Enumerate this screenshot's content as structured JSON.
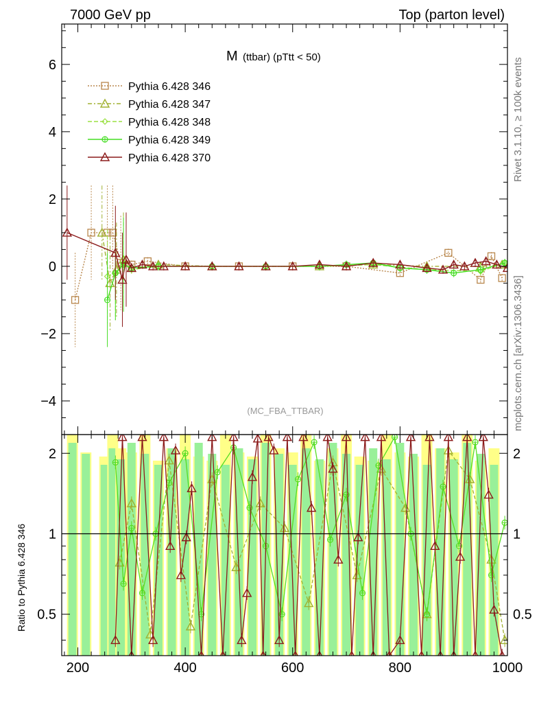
{
  "header": {
    "left": "7000 GeV pp",
    "right": "Top (parton level)"
  },
  "side_labels": {
    "top": "Rivet 3.1.10, ≥ 100k events",
    "bottom": "mcplots.cern.ch [arXiv:1306.3436]"
  },
  "chart_data": {
    "type": "line",
    "title": "M (ttbar) (pTtt < 50)",
    "title_main": "M",
    "title_sub": "(ttbar) (pTtt < 50)",
    "analysis": "(MC_FBA_TTBAR)",
    "xlim": [
      170,
      1000
    ],
    "ylim": [
      -5,
      7.2
    ],
    "xticks": [
      200,
      400,
      600,
      800,
      1000
    ],
    "yticks": [
      -4,
      -2,
      0,
      2,
      4,
      6
    ],
    "legend_position": "top-left",
    "series": [
      {
        "name": "Pythia 6.428 346",
        "color": "#b8864b",
        "marker": "square",
        "dash": "2,2",
        "x": [
          195,
          225,
          255,
          265,
          280,
          300,
          330,
          400,
          500,
          600,
          700,
          800,
          890,
          950,
          970,
          990
        ],
        "y": [
          -1.0,
          1.0,
          1.0,
          1.0,
          0.1,
          0.05,
          0.15,
          0.0,
          0.0,
          0.0,
          0.0,
          -0.2,
          0.4,
          -0.4,
          0.3,
          -0.35
        ]
      },
      {
        "name": "Pythia 6.428 347",
        "color": "#a0b030",
        "marker": "triangle",
        "dash": "6,3,2,3",
        "x": [
          245,
          260,
          272,
          285,
          300,
          350,
          450,
          550,
          650,
          750,
          850,
          950,
          990
        ],
        "y": [
          1.0,
          -0.5,
          -0.1,
          0.2,
          -0.05,
          0.05,
          0.0,
          0.0,
          0.0,
          0.05,
          0.0,
          0.0,
          0.05
        ]
      },
      {
        "name": "Pythia 6.428 348",
        "color": "#9ae040",
        "marker": "diamond",
        "dash": "6,3",
        "x": [
          255,
          270,
          285,
          300,
          350,
          450,
          550,
          650,
          750,
          850,
          950,
          995
        ],
        "y": [
          -0.3,
          -0.2,
          0.1,
          -0.1,
          0.0,
          0.0,
          0.0,
          0.0,
          0.05,
          -0.1,
          -0.15,
          0.1
        ]
      },
      {
        "name": "Pythia 6.428 349",
        "color": "#44dd22",
        "marker": "circle-plus",
        "dash": "",
        "x": [
          255,
          270,
          285,
          300,
          350,
          450,
          550,
          650,
          700,
          750,
          800,
          850,
          900,
          950,
          995
        ],
        "y": [
          -1.0,
          -0.2,
          0.05,
          -0.05,
          0.0,
          0.0,
          0.0,
          0.0,
          0.05,
          0.1,
          -0.05,
          -0.1,
          -0.2,
          -0.1,
          0.1
        ]
      },
      {
        "name": "Pythia 6.428 370",
        "color": "#8b1a1a",
        "marker": "triangle",
        "dash": "",
        "x": [
          180,
          270,
          283,
          290,
          300,
          320,
          340,
          360,
          400,
          450,
          500,
          550,
          600,
          650,
          700,
          750,
          800,
          850,
          880,
          900,
          920,
          940,
          960,
          980,
          1000
        ],
        "y": [
          1.0,
          0.4,
          -0.4,
          0.2,
          -0.05,
          0.05,
          0.0,
          0.0,
          0.0,
          0.0,
          0.0,
          0.0,
          0.0,
          0.05,
          0.0,
          0.1,
          0.05,
          -0.05,
          -0.1,
          0.05,
          0.0,
          0.1,
          0.15,
          0.05,
          -0.05
        ]
      }
    ],
    "ratio": {
      "ylabel": "Ratio to Pythia 6.428 346",
      "ylim": [
        0.35,
        2.35
      ],
      "yticks": [
        0.5,
        1,
        2
      ],
      "ytick_labels": [
        "0.5",
        "1",
        "2"
      ],
      "band_x": [
        190,
        215,
        250,
        265,
        280,
        300,
        325,
        350,
        375,
        400,
        425,
        450,
        475,
        500,
        525,
        550,
        575,
        600,
        625,
        650,
        675,
        700,
        725,
        750,
        775,
        800,
        825,
        850,
        875,
        900,
        925,
        950,
        975
      ],
      "band_width": 12,
      "main_series": {
        "name": "Pythia 6.428 370",
        "x": [
          270,
          283,
          300,
          320,
          340,
          360,
          372,
          382,
          392,
          402,
          412,
          430,
          450,
          470,
          490,
          505,
          515,
          525,
          535,
          545,
          555,
          565,
          575,
          590,
          605,
          620,
          635,
          650,
          665,
          675,
          685,
          700,
          710,
          722,
          735,
          750,
          765,
          780,
          800,
          820,
          840,
          855,
          865,
          875,
          890,
          900,
          912,
          925,
          940,
          955,
          965,
          975,
          990
        ],
        "y": [
          0.4,
          2.3,
          0.35,
          2.3,
          0.4,
          2.3,
          0.9,
          2.05,
          0.7,
          0.97,
          1.48,
          0.35,
          2.3,
          0.35,
          2.3,
          0.4,
          0.6,
          1.63,
          2.27,
          0.35,
          2.3,
          2.05,
          0.4,
          2.3,
          0.35,
          2.3,
          1.25,
          0.35,
          2.3,
          1.75,
          0.8,
          2.3,
          0.35,
          0.97,
          2.3,
          0.35,
          2.3,
          0.35,
          0.4,
          2.3,
          0.35,
          2.3,
          0.9,
          0.35,
          2.3,
          0.35,
          0.82,
          2.3,
          0.35,
          2.3,
          1.4,
          0.52,
          0.35
        ]
      },
      "green_series": {
        "name": "Pythia 6.428 349",
        "x": [
          270,
          285,
          300,
          320,
          345,
          370,
          400,
          430,
          460,
          490,
          520,
          550,
          580,
          610,
          640,
          670,
          700,
          730,
          760,
          790,
          820,
          850,
          880,
          910,
          940,
          970,
          995
        ],
        "y": [
          1.85,
          0.65,
          1.05,
          0.6,
          1.0,
          1.55,
          2.0,
          0.5,
          1.7,
          2.1,
          1.25,
          0.9,
          0.5,
          1.6,
          2.2,
          0.95,
          1.4,
          0.6,
          1.8,
          2.3,
          1.0,
          0.5,
          1.5,
          0.9,
          2.2,
          0.7,
          1.1
        ]
      },
      "olive_series": {
        "name": "Pythia 6.428 347",
        "x": [
          278,
          300,
          335,
          370,
          410,
          450,
          495,
          540,
          585,
          630,
          675,
          720,
          765,
          810,
          850,
          890,
          930,
          970,
          995
        ],
        "y": [
          0.78,
          1.3,
          0.42,
          1.88,
          0.45,
          1.6,
          0.75,
          1.3,
          1.05,
          0.55,
          1.85,
          0.7,
          1.75,
          1.25,
          0.5,
          2.05,
          1.6,
          0.8,
          0.4
        ]
      }
    }
  }
}
